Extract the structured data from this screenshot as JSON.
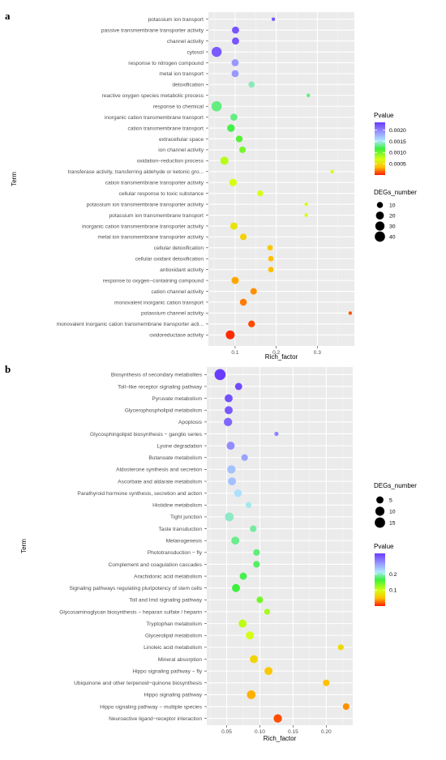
{
  "chart_data": [
    {
      "type": "scatter",
      "panel": "a",
      "xlabel": "Rich_factor",
      "ylabel": "Term",
      "xticks": [
        0.1,
        0.2,
        0.3
      ],
      "xlim": [
        0.035,
        0.39
      ],
      "grid": true,
      "legend_position": "right",
      "color_legend": {
        "title": "Pvalue",
        "ticks": [
          0.002,
          0.0015,
          0.001,
          0.0005
        ],
        "tick_labels": [
          "0.0020",
          "0.0015",
          "0.0010",
          "0.0005"
        ],
        "range": [
          0.0,
          0.00235
        ]
      },
      "size_legend": {
        "title": "DEGs_number",
        "ticks": [
          10,
          20,
          30,
          40
        ],
        "range": [
          5,
          45
        ]
      },
      "points": [
        {
          "term": "potassium ion transport",
          "rich_factor": 0.193,
          "pvalue": 0.00223,
          "degs": 5
        },
        {
          "term": "passive transmembrane transporter activity",
          "rich_factor": 0.101,
          "pvalue": 0.00223,
          "degs": 15
        },
        {
          "term": "channel activity",
          "rich_factor": 0.101,
          "pvalue": 0.00223,
          "degs": 15
        },
        {
          "term": "cytosol",
          "rich_factor": 0.055,
          "pvalue": 0.0022,
          "degs": 38
        },
        {
          "term": "response to nitrogen compound",
          "rich_factor": 0.1,
          "pvalue": 0.0019,
          "degs": 15
        },
        {
          "term": "metal ion transport",
          "rich_factor": 0.1,
          "pvalue": 0.0019,
          "degs": 15
        },
        {
          "term": "detoxification",
          "rich_factor": 0.14,
          "pvalue": 0.0014,
          "degs": 10
        },
        {
          "term": "reactive oxygen species metabolic process",
          "rich_factor": 0.278,
          "pvalue": 0.0013,
          "degs": 5
        },
        {
          "term": "response to chemical",
          "rich_factor": 0.055,
          "pvalue": 0.0013,
          "degs": 40
        },
        {
          "term": "inorganic cation transmembrane transport",
          "rich_factor": 0.097,
          "pvalue": 0.0013,
          "degs": 15
        },
        {
          "term": "cation transmembrane transport",
          "rich_factor": 0.09,
          "pvalue": 0.0012,
          "degs": 18
        },
        {
          "term": "extracellular space",
          "rich_factor": 0.11,
          "pvalue": 0.0011,
          "degs": 13
        },
        {
          "term": "ion channel activity",
          "rich_factor": 0.118,
          "pvalue": 0.001,
          "degs": 12
        },
        {
          "term": "oxidation−reduction process",
          "rich_factor": 0.074,
          "pvalue": 0.0008,
          "degs": 22
        },
        {
          "term": "transferase activity, transferring aldehyde or ketonic gro...",
          "rich_factor": 0.336,
          "pvalue": 0.0007,
          "degs": 4
        },
        {
          "term": "cation transmembrane transporter activity",
          "rich_factor": 0.095,
          "pvalue": 0.0007,
          "degs": 17
        },
        {
          "term": "cellular response to toxic substance",
          "rich_factor": 0.161,
          "pvalue": 0.0007,
          "degs": 9
        },
        {
          "term": "potassium ion transmembrane transporter activity",
          "rich_factor": 0.273,
          "pvalue": 0.0007,
          "degs": 5
        },
        {
          "term": "potassium ion transmembrane transport",
          "rich_factor": 0.273,
          "pvalue": 0.0007,
          "degs": 5
        },
        {
          "term": "inorganic cation transmembrane transporter activity",
          "rich_factor": 0.097,
          "pvalue": 0.00055,
          "degs": 16
        },
        {
          "term": "metal ion transmembrane transporter activity",
          "rich_factor": 0.12,
          "pvalue": 0.00045,
          "degs": 12
        },
        {
          "term": "cellular detoxification",
          "rich_factor": 0.185,
          "pvalue": 0.0004,
          "degs": 8
        },
        {
          "term": "cellular oxidant detoxification",
          "rich_factor": 0.187,
          "pvalue": 0.00035,
          "degs": 8
        },
        {
          "term": "antioxidant activity",
          "rich_factor": 0.187,
          "pvalue": 0.00035,
          "degs": 8
        },
        {
          "term": "response to oxygen−containing compound",
          "rich_factor": 0.1,
          "pvalue": 0.0003,
          "degs": 16
        },
        {
          "term": "cation channel activity",
          "rich_factor": 0.145,
          "pvalue": 0.00025,
          "degs": 12
        },
        {
          "term": "monovalent inorganic cation transport",
          "rich_factor": 0.12,
          "pvalue": 0.0002,
          "degs": 14
        },
        {
          "term": "potassium channel activity",
          "rich_factor": 0.38,
          "pvalue": 0.00012,
          "degs": 5
        },
        {
          "term": "monovalent inorganic cation transmembrane transporter acti...",
          "rich_factor": 0.14,
          "pvalue": 0.0001,
          "degs": 13
        },
        {
          "term": "oxidoreductase activity",
          "rich_factor": 0.088,
          "pvalue": 3e-05,
          "degs": 27
        }
      ]
    },
    {
      "type": "scatter",
      "panel": "b",
      "xlabel": "Rich_factor",
      "ylabel": "Term",
      "xticks": [
        0.05,
        0.1,
        0.15,
        0.2
      ],
      "xticks_labels": [
        "0.05",
        "0.10",
        "0.15",
        "0.20"
      ],
      "xlim": [
        0.02,
        0.24
      ],
      "grid": true,
      "legend_position": "right",
      "size_legend": {
        "title": "DEGs_number",
        "ticks": [
          5,
          10,
          15
        ],
        "range": [
          2,
          18
        ]
      },
      "color_legend": {
        "title": "Pvalue",
        "ticks": [
          0.2,
          0.1
        ],
        "tick_labels": [
          "0.2",
          "0.1"
        ],
        "range": [
          0.0,
          0.33
        ]
      },
      "points": [
        {
          "term": "Biosynthesis of secondary metabolites",
          "rich_factor": 0.04,
          "pvalue": 0.33,
          "degs": 18
        },
        {
          "term": "Toll−like receptor signaling pathway",
          "rich_factor": 0.068,
          "pvalue": 0.32,
          "degs": 5
        },
        {
          "term": "Pyruvate metabolism",
          "rich_factor": 0.053,
          "pvalue": 0.315,
          "degs": 7
        },
        {
          "term": "Glycerophospholipid metabolism",
          "rich_factor": 0.053,
          "pvalue": 0.31,
          "degs": 7
        },
        {
          "term": "Apoptosis",
          "rich_factor": 0.052,
          "pvalue": 0.3,
          "degs": 8
        },
        {
          "term": "Glycosphingolipid biosynthesis − ganglio series",
          "rich_factor": 0.125,
          "pvalue": 0.28,
          "degs": 2
        },
        {
          "term": "Lysine degradation",
          "rich_factor": 0.056,
          "pvalue": 0.275,
          "degs": 7
        },
        {
          "term": "Butanoate metabolism",
          "rich_factor": 0.077,
          "pvalue": 0.26,
          "degs": 4
        },
        {
          "term": "Aldosterone synthesis and secretion",
          "rich_factor": 0.057,
          "pvalue": 0.24,
          "degs": 8
        },
        {
          "term": "Ascorbate and aldarate metabolism",
          "rich_factor": 0.058,
          "pvalue": 0.24,
          "degs": 7
        },
        {
          "term": "Parathyroid hormone synthesis, secretion and action",
          "rich_factor": 0.067,
          "pvalue": 0.22,
          "degs": 6
        },
        {
          "term": "Histidine metabolism",
          "rich_factor": 0.083,
          "pvalue": 0.21,
          "degs": 3
        },
        {
          "term": "Tight junction",
          "rich_factor": 0.054,
          "pvalue": 0.2,
          "degs": 9
        },
        {
          "term": "Taste transduction",
          "rich_factor": 0.09,
          "pvalue": 0.19,
          "degs": 4
        },
        {
          "term": "Melanogenesis",
          "rich_factor": 0.063,
          "pvalue": 0.185,
          "degs": 7
        },
        {
          "term": "Phototransduction − fly",
          "rich_factor": 0.095,
          "pvalue": 0.18,
          "degs": 4
        },
        {
          "term": "Complement and coagulation cascades",
          "rich_factor": 0.095,
          "pvalue": 0.175,
          "degs": 4
        },
        {
          "term": "Arachidonic acid metabolism",
          "rich_factor": 0.075,
          "pvalue": 0.17,
          "degs": 5
        },
        {
          "term": "Signaling pathways regulating pluripotency of stem cells",
          "rich_factor": 0.064,
          "pvalue": 0.165,
          "degs": 7
        },
        {
          "term": "Toll and Imd signaling pathway",
          "rich_factor": 0.1,
          "pvalue": 0.14,
          "degs": 4
        },
        {
          "term": "Glycosaminoglycan biosynthesis − heparan sulfate / heparin",
          "rich_factor": 0.111,
          "pvalue": 0.12,
          "degs": 3
        },
        {
          "term": "Tryptophan metabolism",
          "rich_factor": 0.074,
          "pvalue": 0.11,
          "degs": 7
        },
        {
          "term": "Glycerolipid metabolism",
          "rich_factor": 0.085,
          "pvalue": 0.1,
          "degs": 7
        },
        {
          "term": "Linoleic acid metabolism",
          "rich_factor": 0.222,
          "pvalue": 0.07,
          "degs": 3
        },
        {
          "term": "Mineral absorption",
          "rich_factor": 0.091,
          "pvalue": 0.065,
          "degs": 7
        },
        {
          "term": "Hippo signaling pathway − fly",
          "rich_factor": 0.113,
          "pvalue": 0.055,
          "degs": 7
        },
        {
          "term": "Ubiquinone and other terpenoid−quinone biosynthesis",
          "rich_factor": 0.2,
          "pvalue": 0.05,
          "degs": 4
        },
        {
          "term": "Hippo signaling pathway",
          "rich_factor": 0.087,
          "pvalue": 0.045,
          "degs": 9
        },
        {
          "term": "Hippo signaling pathway − multiple species",
          "rich_factor": 0.23,
          "pvalue": 0.035,
          "degs": 4
        },
        {
          "term": "Neuroactive ligand−receptor interaction",
          "rich_factor": 0.127,
          "pvalue": 0.015,
          "degs": 8
        }
      ]
    }
  ]
}
